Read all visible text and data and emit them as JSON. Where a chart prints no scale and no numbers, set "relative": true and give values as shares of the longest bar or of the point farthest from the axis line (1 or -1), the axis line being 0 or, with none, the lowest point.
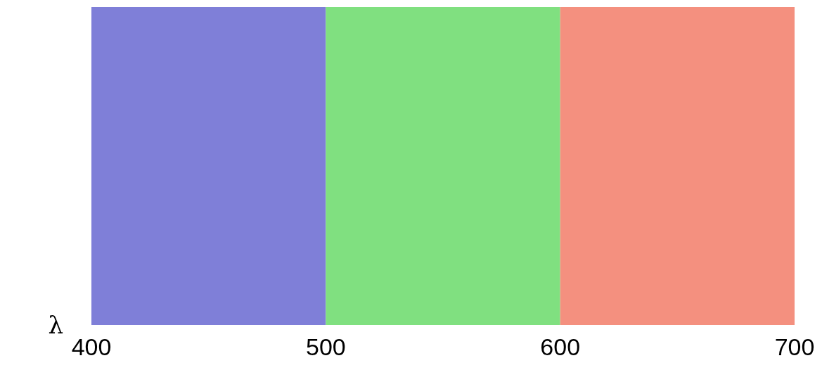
{
  "chart_data": {
    "type": "bar",
    "xlabel": "λ",
    "relative": true,
    "x": [
      450,
      550,
      650
    ],
    "values": [
      1,
      1,
      1
    ],
    "colors": [
      "#7f7fd8",
      "#80e080",
      "#f4907f"
    ],
    "xlim": [
      400,
      700
    ],
    "xticks": [
      400,
      500,
      600,
      700
    ],
    "grid": false
  }
}
